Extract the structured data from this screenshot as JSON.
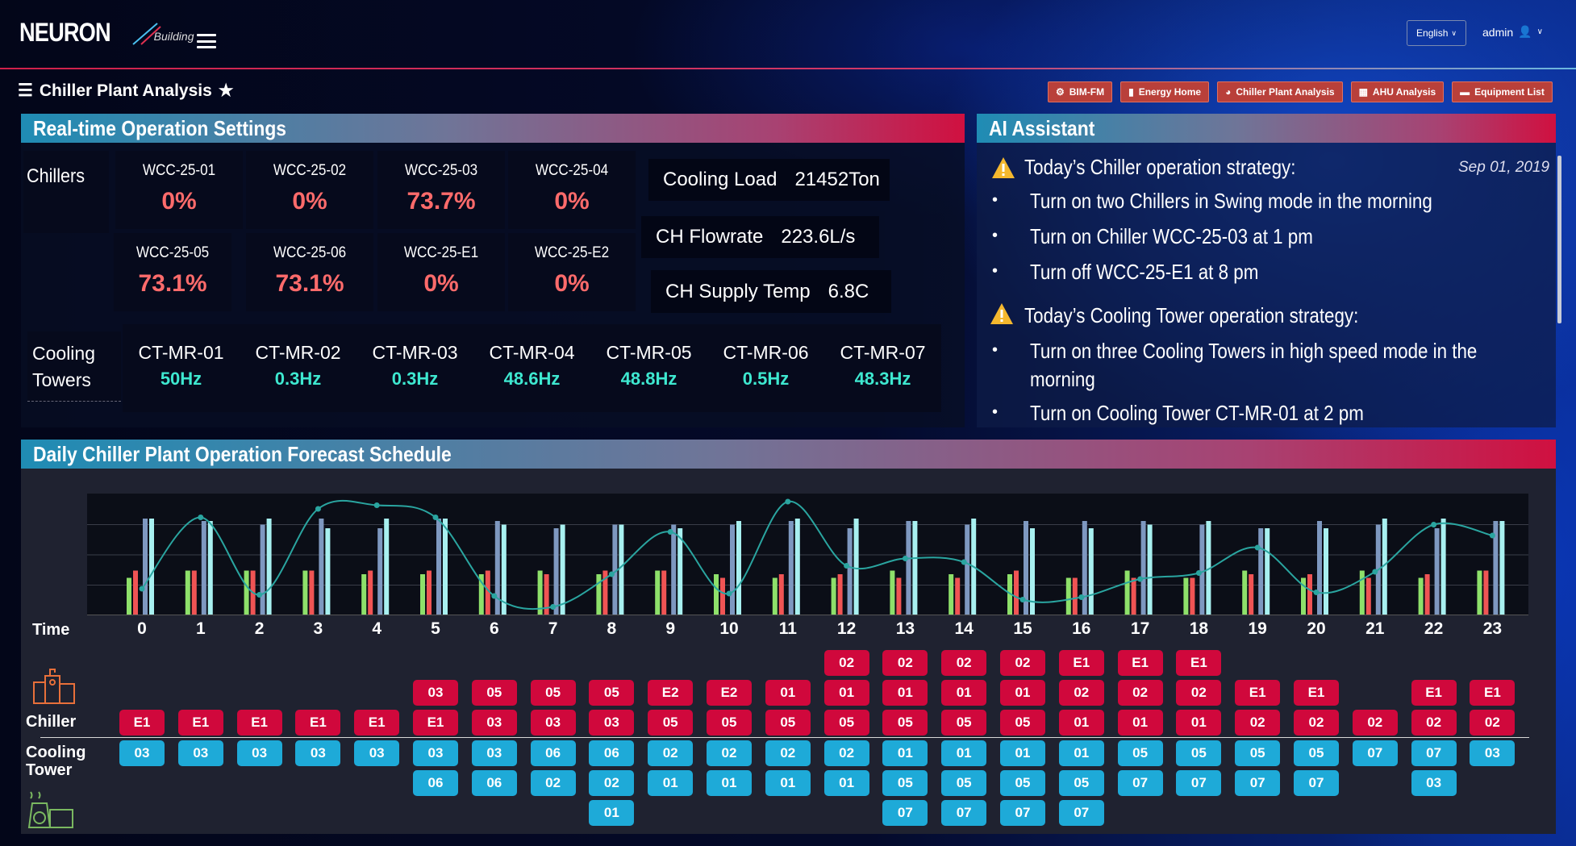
{
  "header": {
    "logo_text": "NEURON",
    "logo_sub": "Building",
    "language": "English",
    "user": "admin"
  },
  "breadcrumb": {
    "title": "Chiller Plant Analysis"
  },
  "nav_buttons": [
    {
      "label": "BIM-FM",
      "icon": "gear-icon"
    },
    {
      "label": "Energy Home",
      "icon": "bar-chart-icon"
    },
    {
      "label": "Chiller Plant Analysis",
      "icon": "pie-chart-icon"
    },
    {
      "label": "AHU Analysis",
      "icon": "chart-icon"
    },
    {
      "label": "Equipment List",
      "icon": "folder-icon"
    }
  ],
  "realtime": {
    "title": "Real-time Operation Settings",
    "chillers_label": "Chillers",
    "chillers": [
      {
        "name": "WCC-25-01",
        "value": "0%"
      },
      {
        "name": "WCC-25-02",
        "value": "0%"
      },
      {
        "name": "WCC-25-03",
        "value": "73.7%"
      },
      {
        "name": "WCC-25-04",
        "value": "0%"
      },
      {
        "name": "WCC-25-05",
        "value": "73.1%"
      },
      {
        "name": "WCC-25-06",
        "value": "73.1%"
      },
      {
        "name": "WCC-25-E1",
        "value": "0%"
      },
      {
        "name": "WCC-25-E2",
        "value": "0%"
      }
    ],
    "info": [
      {
        "label": "Cooling Load",
        "value": "21452Ton"
      },
      {
        "label": "CH Flowrate",
        "value": "223.6L/s"
      },
      {
        "label": "CH Supply Temp",
        "value": "6.8C"
      }
    ],
    "towers_label_1": "Cooling",
    "towers_label_2": "Towers",
    "towers": [
      {
        "name": "CT-MR-01",
        "value": "50Hz"
      },
      {
        "name": "CT-MR-02",
        "value": "0.3Hz"
      },
      {
        "name": "CT-MR-03",
        "value": "0.3Hz"
      },
      {
        "name": "CT-MR-04",
        "value": "48.6Hz"
      },
      {
        "name": "CT-MR-05",
        "value": "48.8Hz"
      },
      {
        "name": "CT-MR-06",
        "value": "0.5Hz"
      },
      {
        "name": "CT-MR-07",
        "value": "48.3Hz"
      }
    ]
  },
  "ai": {
    "title": "AI Assistant",
    "date": "Sep 01, 2019",
    "chiller_heading": "Today’s Chiller operation strategy:",
    "chiller_items": [
      "Turn on two Chillers in Swing mode in the morning",
      "Turn on Chiller WCC-25-03 at 1 pm",
      "Turn off WCC-25-E1 at 8 pm"
    ],
    "tower_heading": "Today’s Cooling Tower operation strategy:",
    "tower_items": [
      "Turn on three Cooling Towers in high speed mode in the",
      "morning",
      "Turn on Cooling Tower CT-MR-01 at 2 pm"
    ]
  },
  "schedule": {
    "title": "Daily Chiller Plant Operation Forecast Schedule",
    "time_label": "Time",
    "chiller_label": "Chiller",
    "tower_label_1": "Cooling",
    "tower_label_2": "Tower",
    "colors": {
      "chiller": "#d0083c",
      "tower": "#1eaad8"
    },
    "rows": [
      {
        "hour": "0",
        "chillers": [
          "E1"
        ],
        "towers": [
          "03"
        ]
      },
      {
        "hour": "1",
        "chillers": [
          "E1"
        ],
        "towers": [
          "03"
        ]
      },
      {
        "hour": "2",
        "chillers": [
          "E1"
        ],
        "towers": [
          "03"
        ]
      },
      {
        "hour": "3",
        "chillers": [
          "E1"
        ],
        "towers": [
          "03"
        ]
      },
      {
        "hour": "4",
        "chillers": [
          "E1"
        ],
        "towers": [
          "03"
        ]
      },
      {
        "hour": "5",
        "chillers": [
          "03",
          "E1"
        ],
        "towers": [
          "03",
          "06"
        ]
      },
      {
        "hour": "6",
        "chillers": [
          "05",
          "03"
        ],
        "towers": [
          "03",
          "06"
        ]
      },
      {
        "hour": "7",
        "chillers": [
          "05",
          "03"
        ],
        "towers": [
          "06",
          "02"
        ]
      },
      {
        "hour": "8",
        "chillers": [
          "05",
          "03"
        ],
        "towers": [
          "06",
          "02",
          "01"
        ]
      },
      {
        "hour": "9",
        "chillers": [
          "E2",
          "05"
        ],
        "towers": [
          "02",
          "01"
        ]
      },
      {
        "hour": "10",
        "chillers": [
          "E2",
          "05"
        ],
        "towers": [
          "02",
          "01"
        ]
      },
      {
        "hour": "11",
        "chillers": [
          "01",
          "05"
        ],
        "towers": [
          "02",
          "01"
        ]
      },
      {
        "hour": "12",
        "chillers": [
          "02",
          "01",
          "05"
        ],
        "towers": [
          "02",
          "01"
        ]
      },
      {
        "hour": "13",
        "chillers": [
          "02",
          "01",
          "05"
        ],
        "towers": [
          "01",
          "05",
          "07"
        ]
      },
      {
        "hour": "14",
        "chillers": [
          "02",
          "01",
          "05"
        ],
        "towers": [
          "01",
          "05",
          "07"
        ]
      },
      {
        "hour": "15",
        "chillers": [
          "02",
          "01",
          "05"
        ],
        "towers": [
          "01",
          "05",
          "07"
        ]
      },
      {
        "hour": "16",
        "chillers": [
          "E1",
          "02",
          "01"
        ],
        "towers": [
          "01",
          "05",
          "07"
        ]
      },
      {
        "hour": "17",
        "chillers": [
          "E1",
          "02",
          "01"
        ],
        "towers": [
          "05",
          "07"
        ]
      },
      {
        "hour": "18",
        "chillers": [
          "E1",
          "02",
          "01"
        ],
        "towers": [
          "05",
          "07"
        ]
      },
      {
        "hour": "19",
        "chillers": [
          "E1",
          "02"
        ],
        "towers": [
          "05",
          "07"
        ]
      },
      {
        "hour": "20",
        "chillers": [
          "E1",
          "02"
        ],
        "towers": [
          "05",
          "07"
        ]
      },
      {
        "hour": "21",
        "chillers": [
          "02"
        ],
        "towers": [
          "07"
        ]
      },
      {
        "hour": "22",
        "chillers": [
          "E1",
          "02"
        ],
        "towers": [
          "07",
          "03"
        ]
      },
      {
        "hour": "23",
        "chillers": [
          "E1",
          "02"
        ],
        "towers": [
          "03"
        ]
      }
    ]
  },
  "chart_data": {
    "type": "bar",
    "categories": [
      "0",
      "1",
      "2",
      "3",
      "4",
      "5",
      "6",
      "7",
      "8",
      "9",
      "10",
      "11",
      "12",
      "13",
      "14",
      "15",
      "16",
      "17",
      "18",
      "19",
      "20",
      "21",
      "22",
      "23"
    ],
    "ylim": [
      0,
      100
    ],
    "grid": true,
    "series": [
      {
        "color": "#8ee06a",
        "values": [
          31,
          37,
          37,
          37,
          34,
          34,
          34,
          37,
          34,
          37,
          34,
          31,
          31,
          37,
          34,
          34,
          31,
          37,
          31,
          37,
          31,
          37,
          31,
          37
        ]
      },
      {
        "color": "#f05454",
        "values": [
          37,
          37,
          37,
          37,
          37,
          37,
          37,
          34,
          37,
          37,
          31,
          34,
          34,
          31,
          31,
          37,
          31,
          31,
          31,
          34,
          34,
          31,
          34,
          37
        ]
      },
      {
        "color": "#7e98c0",
        "values": [
          80,
          78,
          75,
          80,
          72,
          80,
          78,
          72,
          75,
          75,
          75,
          78,
          72,
          78,
          75,
          78,
          78,
          78,
          75,
          72,
          78,
          75,
          72,
          78
        ]
      },
      {
        "color": "#a8f0f0",
        "values": [
          80,
          78,
          80,
          72,
          80,
          80,
          75,
          75,
          75,
          72,
          78,
          80,
          80,
          78,
          80,
          72,
          72,
          75,
          78,
          72,
          72,
          80,
          80,
          78
        ]
      }
    ],
    "line": {
      "type": "line",
      "color": "#2aa5a0",
      "values": [
        22,
        81,
        17,
        88,
        91,
        81,
        16,
        7,
        34,
        69,
        18,
        94,
        41,
        47,
        44,
        13,
        15,
        30,
        35,
        56,
        19,
        36,
        75,
        66
      ]
    }
  }
}
